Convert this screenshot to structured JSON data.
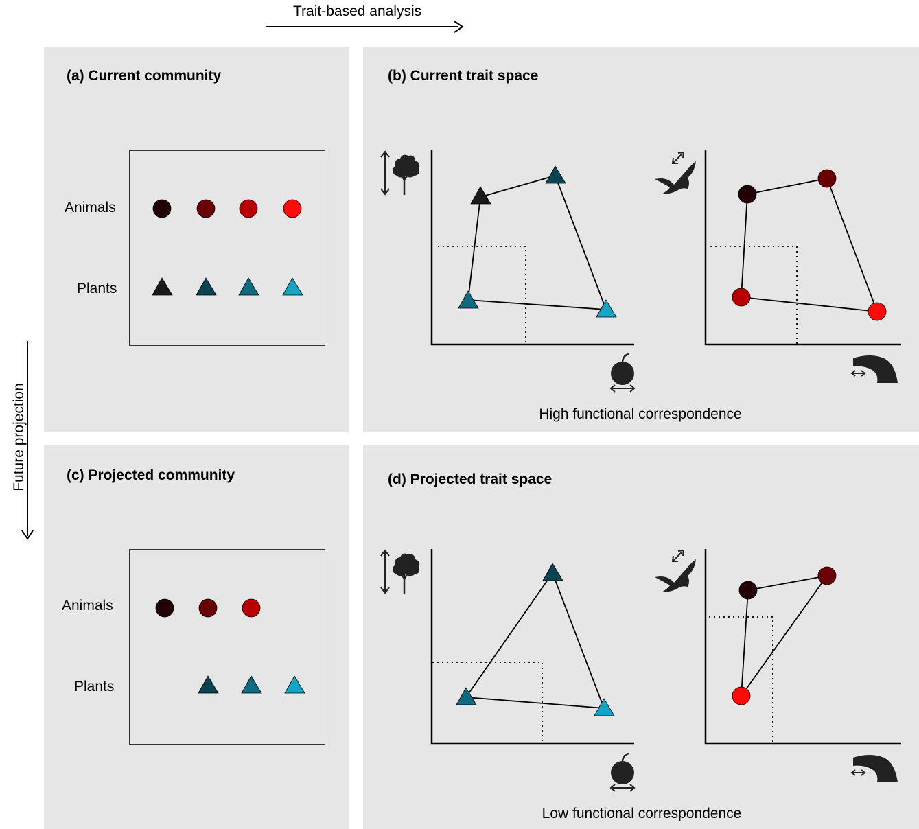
{
  "header": {
    "trait_arrow_label": "Trait-based analysis",
    "future_arrow_label": "Future projection"
  },
  "colors": {
    "panel_bg": "#e6e6e6",
    "animal": [
      "#230005",
      "#680006",
      "#b80004",
      "#ff0a0a"
    ],
    "plant": [
      "#1a1a1a",
      "#0b4450",
      "#0f6c80",
      "#14a5c6"
    ]
  },
  "panel_a": {
    "title": "(a) Current community",
    "animals_label": "Animals",
    "plants_label": "Plants"
  },
  "panel_b": {
    "title": "(b) Current trait space",
    "caption": "High functional correspondence"
  },
  "panel_c": {
    "title": "(c) Projected community",
    "animals_label": "Animals",
    "plants_label": "Plants"
  },
  "panel_d": {
    "title": "(d) Projected trait space",
    "caption": "Low functional correspondence"
  },
  "icons": {
    "plant_y": "tree-height-icon",
    "plant_x": "fruit-size-icon",
    "animal_y": "bird-wing-icon",
    "animal_x": "bird-beak-icon"
  }
}
